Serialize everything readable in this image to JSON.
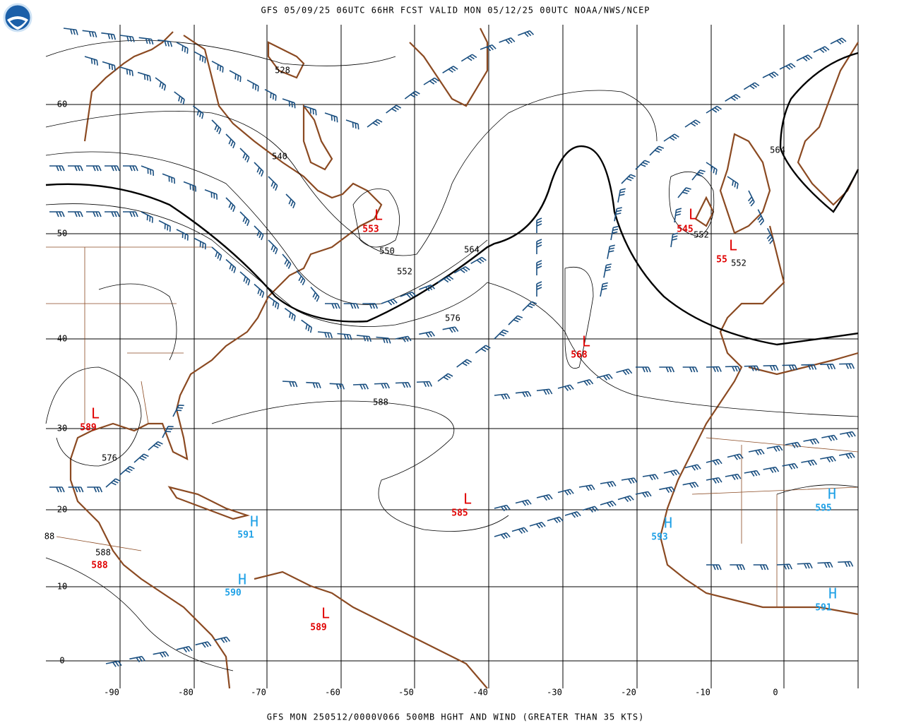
{
  "header": {
    "title": "GFS 05/09/25 06UTC 66HR FCST VALID MON 05/12/25 00UTC NOAA/NWS/NCEP"
  },
  "footer": {
    "text": "GFS MON 250512/0000V066 500MB HGHT AND WIND (GREATER THAN 35 KTS)"
  },
  "latitudes": [
    60,
    50,
    40,
    30,
    20,
    10,
    0
  ],
  "longitudes": [
    -90,
    -80,
    -70,
    -60,
    -50,
    -40,
    -30,
    -20,
    -10,
    0
  ],
  "contour_labels": [
    528,
    540,
    564,
    564,
    550,
    552,
    552,
    552,
    576,
    588,
    576,
    588,
    88
  ],
  "centers": [
    {
      "symbol": "L",
      "value": 553
    },
    {
      "symbol": "L",
      "value": 545
    },
    {
      "symbol": "L",
      "value": 55
    },
    {
      "symbol": "L",
      "value": 568
    },
    {
      "symbol": "L",
      "value": 589
    },
    {
      "symbol": "L",
      "value": 585
    },
    {
      "value": 588
    },
    {
      "symbol": "L",
      "value": 589
    },
    {
      "symbol": "H",
      "value": 591
    },
    {
      "symbol": "H",
      "value": 590
    },
    {
      "symbol": "H",
      "value": 593
    },
    {
      "symbol": "H",
      "value": 595
    },
    {
      "symbol": "H",
      "value": 591
    }
  ]
}
